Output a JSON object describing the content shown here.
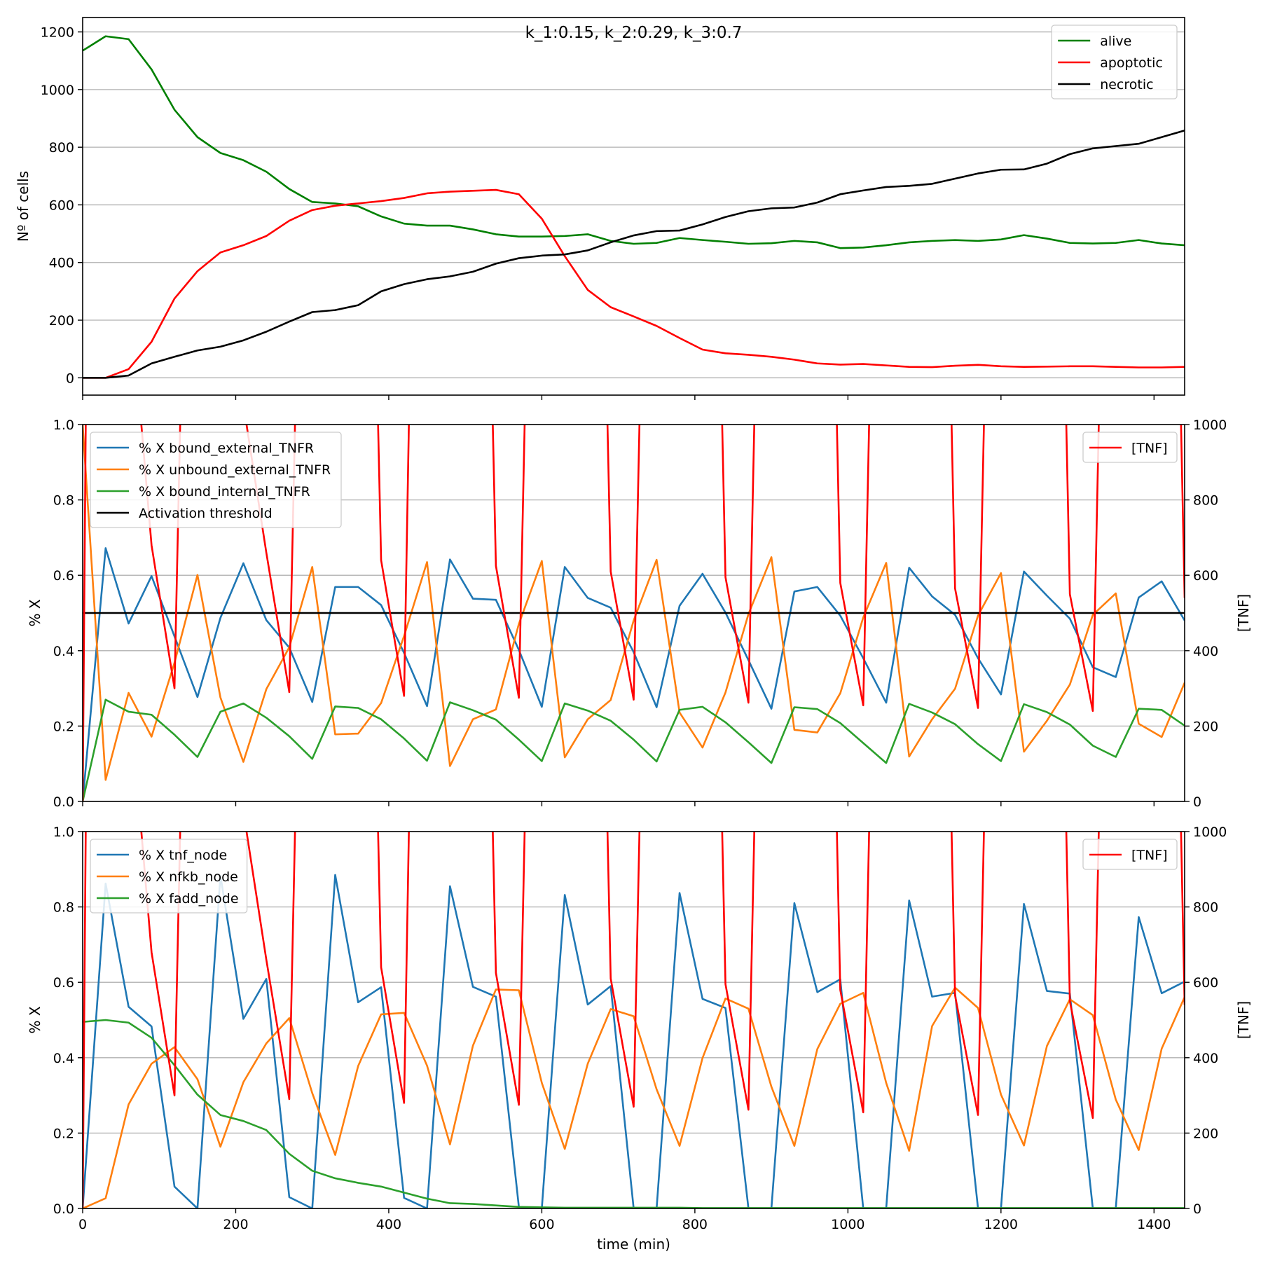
{
  "chart_data": [
    {
      "type": "line",
      "title": "k_1:0.15, k_2:0.29, k_3:0.7",
      "xlabel": "",
      "ylabel": "Nº of cells",
      "xlim": [
        0,
        1440
      ],
      "ylim": [
        -60,
        1250
      ],
      "xticks": [
        0,
        200,
        400,
        600,
        800,
        1000,
        1200,
        1400
      ],
      "xtick_labels_visible": false,
      "yticks": [
        0,
        200,
        400,
        600,
        800,
        1000,
        1200
      ],
      "grid": "y",
      "legend": "top-right",
      "x": [
        0,
        30,
        60,
        90,
        120,
        150,
        180,
        210,
        240,
        270,
        300,
        330,
        360,
        390,
        420,
        450,
        480,
        510,
        540,
        570,
        600,
        630,
        660,
        690,
        720,
        750,
        780,
        810,
        840,
        870,
        900,
        930,
        960,
        990,
        1020,
        1050,
        1080,
        1110,
        1140,
        1170,
        1200,
        1230,
        1260,
        1290,
        1320,
        1350,
        1380,
        1410,
        1440
      ],
      "series": [
        {
          "name": "alive",
          "color": "#008000",
          "values": [
            1135,
            1185,
            1175,
            1070,
            930,
            835,
            780,
            755,
            715,
            655,
            610,
            605,
            595,
            560,
            535,
            528,
            528,
            515,
            498,
            490,
            490,
            492,
            498,
            475,
            465,
            468,
            485,
            478,
            472,
            465,
            467,
            475,
            470,
            450,
            452,
            460,
            470,
            475,
            478,
            475,
            480,
            495,
            483,
            468,
            466,
            468,
            478,
            466,
            460
          ]
        },
        {
          "name": "apoptotic",
          "color": "#ff0000",
          "values": [
            0,
            0,
            30,
            125,
            275,
            370,
            435,
            460,
            492,
            545,
            582,
            597,
            605,
            613,
            624,
            640,
            646,
            649,
            652,
            637,
            552,
            422,
            305,
            245,
            213,
            180,
            138,
            98,
            85,
            80,
            73,
            63,
            50,
            46,
            48,
            43,
            38,
            37,
            42,
            45,
            40,
            38,
            39,
            40,
            40,
            38,
            36,
            36,
            38
          ]
        },
        {
          "name": "necrotic",
          "color": "#000000",
          "values": [
            0,
            0,
            8,
            50,
            73,
            95,
            108,
            130,
            160,
            195,
            228,
            235,
            252,
            300,
            325,
            342,
            352,
            368,
            396,
            415,
            424,
            428,
            442,
            470,
            494,
            509,
            511,
            532,
            558,
            578,
            588,
            591,
            608,
            637,
            650,
            662,
            666,
            673,
            691,
            709,
            722,
            723,
            743,
            776,
            796,
            804,
            812,
            835,
            858
          ]
        }
      ]
    },
    {
      "type": "line",
      "title": "",
      "xlabel": "",
      "ylabel": "% X",
      "y2label": "[TNF]",
      "xlim": [
        0,
        1440
      ],
      "ylim": [
        0,
        1
      ],
      "y2lim": [
        0,
        1000
      ],
      "xticks": [
        0,
        200,
        400,
        600,
        800,
        1000,
        1200,
        1400
      ],
      "xtick_labels_visible": false,
      "yticks": [
        0.0,
        0.2,
        0.4,
        0.6,
        0.8,
        1.0
      ],
      "y2ticks": [
        0,
        200,
        400,
        600,
        800,
        1000
      ],
      "grid": "y",
      "legend": "top-left",
      "legend2": "top-right",
      "x": [
        0,
        30,
        60,
        90,
        120,
        150,
        180,
        210,
        240,
        270,
        300,
        330,
        360,
        390,
        420,
        450,
        480,
        510,
        540,
        570,
        600,
        630,
        660,
        690,
        720,
        750,
        780,
        810,
        840,
        870,
        900,
        930,
        960,
        990,
        1020,
        1050,
        1080,
        1110,
        1140,
        1170,
        1200,
        1230,
        1260,
        1290,
        1320,
        1350,
        1380,
        1410,
        1440
      ],
      "series": [
        {
          "name": "% X bound_external_TNFR",
          "color": "#1f77b4",
          "values": [
            0,
            0.672,
            0.472,
            0.598,
            0.438,
            0.277,
            0.487,
            0.632,
            0.481,
            0.408,
            0.264,
            0.569,
            0.569,
            0.521,
            0.394,
            0.253,
            0.642,
            0.538,
            0.535,
            0.402,
            0.251,
            0.622,
            0.54,
            0.514,
            0.396,
            0.25,
            0.519,
            0.604,
            0.501,
            0.375,
            0.246,
            0.557,
            0.569,
            0.493,
            0.38,
            0.262,
            0.62,
            0.544,
            0.495,
            0.38,
            0.284,
            0.61,
            0.546,
            0.485,
            0.356,
            0.33,
            0.541,
            0.584,
            0.48
          ]
        },
        {
          "name": "% X unbound_external_TNFR",
          "color": "#ff7f0e",
          "values": [
            1.0,
            0.057,
            0.288,
            0.172,
            0.368,
            0.601,
            0.276,
            0.105,
            0.298,
            0.409,
            0.622,
            0.178,
            0.18,
            0.261,
            0.439,
            0.635,
            0.094,
            0.218,
            0.244,
            0.471,
            0.638,
            0.117,
            0.218,
            0.269,
            0.48,
            0.641,
            0.236,
            0.143,
            0.289,
            0.497,
            0.648,
            0.19,
            0.183,
            0.287,
            0.488,
            0.633,
            0.119,
            0.218,
            0.299,
            0.493,
            0.606,
            0.132,
            0.214,
            0.31,
            0.495,
            0.552,
            0.206,
            0.171,
            0.315
          ]
        },
        {
          "name": "% X bound_internal_TNFR",
          "color": "#2ca02c",
          "values": [
            0,
            0.27,
            0.238,
            0.23,
            0.177,
            0.118,
            0.238,
            0.26,
            0.222,
            0.173,
            0.113,
            0.252,
            0.248,
            0.218,
            0.167,
            0.108,
            0.263,
            0.242,
            0.217,
            0.164,
            0.107,
            0.26,
            0.241,
            0.214,
            0.164,
            0.106,
            0.243,
            0.251,
            0.21,
            0.157,
            0.102,
            0.25,
            0.245,
            0.208,
            0.155,
            0.102,
            0.259,
            0.236,
            0.205,
            0.152,
            0.107,
            0.258,
            0.237,
            0.204,
            0.148,
            0.118,
            0.246,
            0.243,
            0.201
          ]
        },
        {
          "name": "Activation threshold",
          "color": "#000000",
          "values": [
            0.5,
            0.5,
            0.5,
            0.5,
            0.5,
            0.5,
            0.5,
            0.5,
            0.5,
            0.5,
            0.5,
            0.5,
            0.5,
            0.5,
            0.5,
            0.5,
            0.5,
            0.5,
            0.5,
            0.5,
            0.5,
            0.5,
            0.5,
            0.5,
            0.5,
            0.5,
            0.5,
            0.5,
            0.5,
            0.5,
            0.5,
            0.5,
            0.5,
            0.5,
            0.5,
            0.5,
            0.5,
            0.5,
            0.5,
            0.5,
            0.5,
            0.5,
            0.5,
            0.5,
            0.5,
            0.5,
            0.5,
            0.5,
            0.5
          ]
        }
      ],
      "series2": [
        {
          "name": "[TNF]",
          "color": "#ff0000",
          "x": [
            0,
            8,
            30,
            60,
            90,
            120,
            138,
            240,
            270,
            288,
            375,
            390,
            420,
            435,
            525,
            540,
            570,
            588,
            675,
            690,
            720,
            738,
            825,
            840,
            870,
            888,
            975,
            990,
            1020,
            1038,
            1125,
            1140,
            1170,
            1188,
            1275,
            1290,
            1320,
            1338,
            1425,
            1440
          ],
          "values": [
            0,
            2000,
            1900,
            1400,
            680,
            300,
            2000,
            660,
            290,
            2000,
            2000,
            640,
            280,
            2000,
            2000,
            625,
            275,
            2000,
            2000,
            610,
            270,
            2000,
            2000,
            595,
            262,
            2000,
            2000,
            580,
            255,
            2000,
            2000,
            565,
            248,
            2000,
            2000,
            550,
            240,
            2000,
            2000,
            540
          ]
        }
      ]
    },
    {
      "type": "line",
      "title": "",
      "xlabel": "time (min)",
      "ylabel": "% X",
      "y2label": "[TNF]",
      "xlim": [
        0,
        1440
      ],
      "ylim": [
        0,
        1
      ],
      "y2lim": [
        0,
        1000
      ],
      "xticks": [
        0,
        200,
        400,
        600,
        800,
        1000,
        1200,
        1400
      ],
      "xtick_labels_visible": true,
      "yticks": [
        0.0,
        0.2,
        0.4,
        0.6,
        0.8,
        1.0
      ],
      "y2ticks": [
        0,
        200,
        400,
        600,
        800,
        1000
      ],
      "grid": "y",
      "legend": "top-left",
      "legend2": "top-right",
      "x": [
        0,
        30,
        60,
        90,
        120,
        150,
        180,
        210,
        240,
        270,
        300,
        330,
        360,
        390,
        420,
        450,
        480,
        510,
        540,
        570,
        600,
        630,
        660,
        690,
        720,
        750,
        780,
        810,
        840,
        870,
        900,
        930,
        960,
        990,
        1020,
        1050,
        1080,
        1110,
        1140,
        1170,
        1200,
        1230,
        1260,
        1290,
        1320,
        1350,
        1380,
        1410,
        1440
      ],
      "series": [
        {
          "name": "% X tnf_node",
          "color": "#1f77b4",
          "values": [
            0,
            0.862,
            0.535,
            0.483,
            0.058,
            0,
            0.883,
            0.503,
            0.609,
            0.03,
            0,
            0.885,
            0.547,
            0.587,
            0.028,
            0,
            0.855,
            0.588,
            0.562,
            0.004,
            0,
            0.832,
            0.541,
            0.59,
            0,
            0,
            0.837,
            0.556,
            0.532,
            0,
            0,
            0.81,
            0.574,
            0.608,
            0,
            0,
            0.817,
            0.562,
            0.572,
            0,
            0,
            0.808,
            0.577,
            0.57,
            0,
            0,
            0.773,
            0.571,
            0.602
          ]
        },
        {
          "name": "% X nfkb_node",
          "color": "#ff7f0e",
          "values": [
            0,
            0.027,
            0.276,
            0.384,
            0.428,
            0.343,
            0.164,
            0.335,
            0.438,
            0.505,
            0.306,
            0.142,
            0.378,
            0.515,
            0.519,
            0.379,
            0.17,
            0.432,
            0.581,
            0.579,
            0.333,
            0.158,
            0.384,
            0.529,
            0.51,
            0.316,
            0.166,
            0.399,
            0.557,
            0.53,
            0.323,
            0.166,
            0.423,
            0.543,
            0.572,
            0.333,
            0.153,
            0.484,
            0.586,
            0.532,
            0.302,
            0.167,
            0.431,
            0.555,
            0.513,
            0.289,
            0.155,
            0.424,
            0.561
          ]
        },
        {
          "name": "% X fadd_node",
          "color": "#2ca02c",
          "values": [
            0.495,
            0.5,
            0.493,
            0.453,
            0.38,
            0.302,
            0.248,
            0.232,
            0.208,
            0.145,
            0.1,
            0.08,
            0.068,
            0.058,
            0.042,
            0.026,
            0.014,
            0.012,
            0.008,
            0.004,
            0.003,
            0.002,
            0.002,
            0.002,
            0.002,
            0.002,
            0.002,
            0.001,
            0.001,
            0.001,
            0.001,
            0.001,
            0.001,
            0.001,
            0.001,
            0.001,
            0.001,
            0.001,
            0.001,
            0.001,
            0.001,
            0.001,
            0.001,
            0.001,
            0.001,
            0.001,
            0.001,
            0.001,
            0.001
          ]
        }
      ],
      "series2": [
        {
          "name": "[TNF]",
          "color": "#ff0000",
          "x": [
            0,
            8,
            30,
            60,
            90,
            120,
            138,
            240,
            270,
            288,
            375,
            390,
            420,
            435,
            525,
            540,
            570,
            588,
            675,
            690,
            720,
            738,
            825,
            840,
            870,
            888,
            975,
            990,
            1020,
            1038,
            1125,
            1140,
            1170,
            1188,
            1275,
            1290,
            1320,
            1338,
            1425,
            1440
          ],
          "values": [
            0,
            2000,
            1900,
            1400,
            680,
            300,
            2000,
            660,
            290,
            2000,
            2000,
            640,
            280,
            2000,
            2000,
            625,
            275,
            2000,
            2000,
            610,
            270,
            2000,
            2000,
            595,
            262,
            2000,
            2000,
            580,
            255,
            2000,
            2000,
            565,
            248,
            2000,
            2000,
            550,
            240,
            2000,
            2000,
            540
          ]
        }
      ]
    }
  ]
}
